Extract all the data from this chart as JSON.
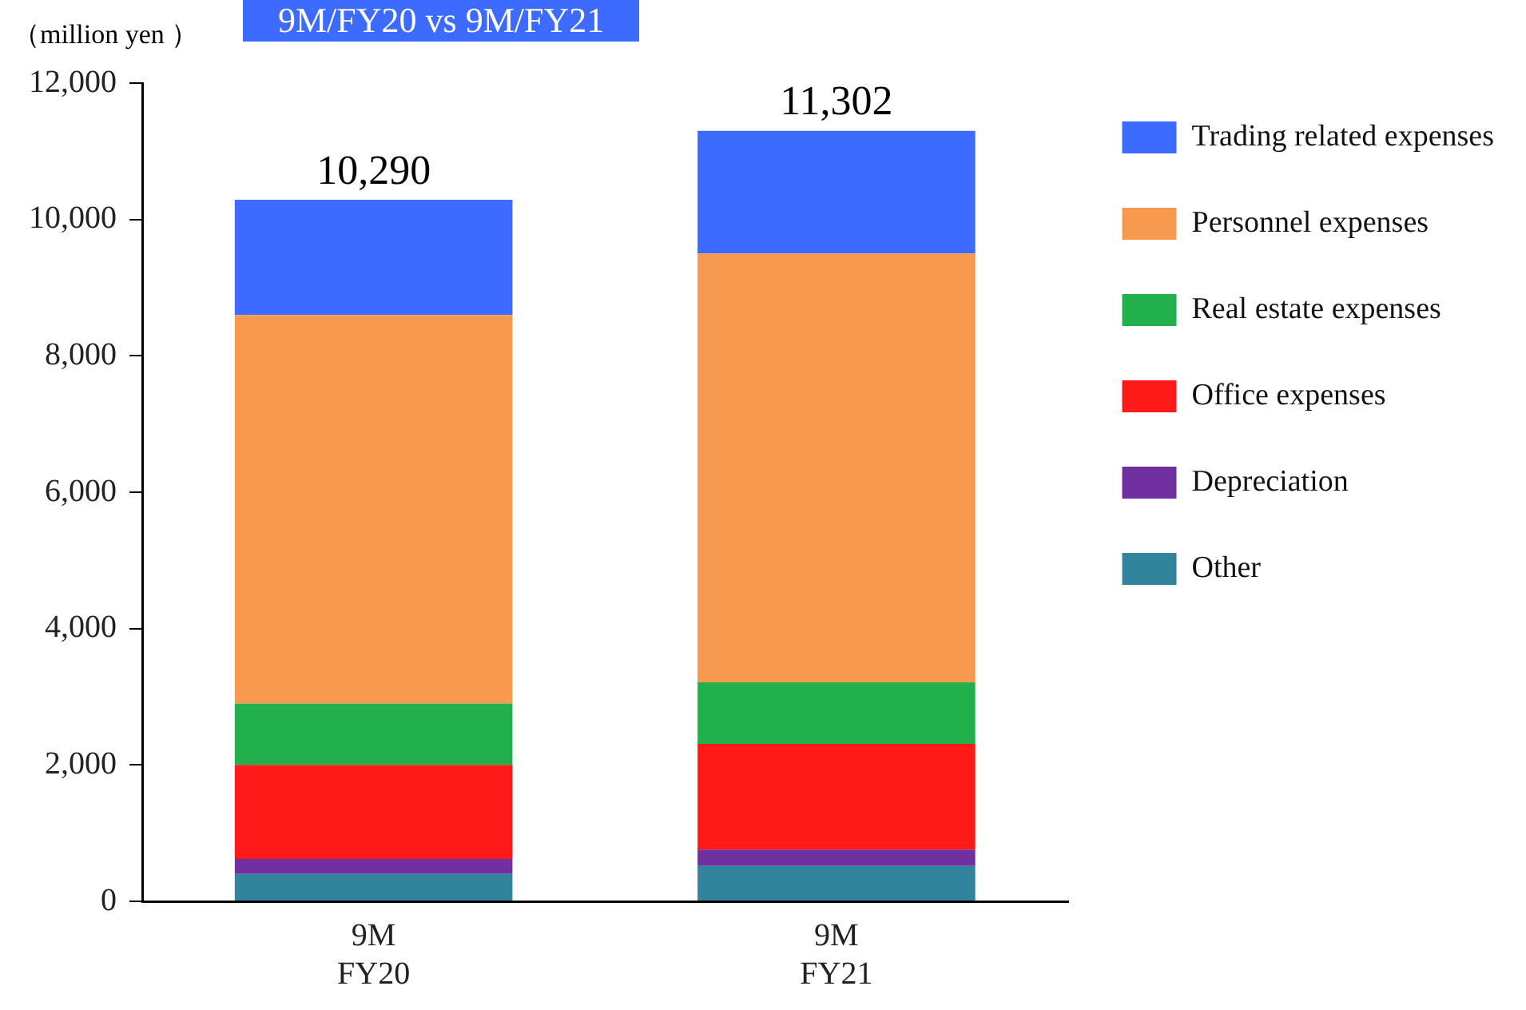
{
  "chart_data": {
    "type": "bar",
    "title": "9M/FY20 vs 9M/FY21",
    "ylabel": "（million yen ）",
    "categories": [
      "9M\nFY20",
      "9M\nFY21"
    ],
    "stacked": true,
    "series": [
      {
        "name": "Other",
        "color": "#31849b",
        "values": [
          400,
          520
        ]
      },
      {
        "name": "Depreciation",
        "color": "#7030a0",
        "values": [
          220,
          240
        ]
      },
      {
        "name": "Office expenses",
        "color": "#ff1a1a",
        "values": [
          1380,
          1550
        ]
      },
      {
        "name": "Real estate expenses",
        "color": "#21b04b",
        "values": [
          900,
          900
        ]
      },
      {
        "name": "Personnel expenses",
        "color": "#f79a50",
        "values": [
          5700,
          6290
        ]
      },
      {
        "name": "Trading related expenses",
        "color": "#3d6bff",
        "values": [
          1690,
          1800
        ]
      }
    ],
    "totals": [
      "10,290",
      "11,302"
    ],
    "ylim": [
      0,
      12000
    ],
    "yticks": [
      0,
      {
        "value": 2000,
        "label": "2,000"
      },
      {
        "value": 4000,
        "label": "4,000"
      },
      {
        "value": 6000,
        "label": "6,000"
      },
      {
        "value": 8000,
        "label": "8,000"
      },
      {
        "value": 10000,
        "label": "10,000"
      },
      {
        "value": 12000,
        "label": "12,000"
      }
    ],
    "grid": false,
    "legend": "right"
  }
}
